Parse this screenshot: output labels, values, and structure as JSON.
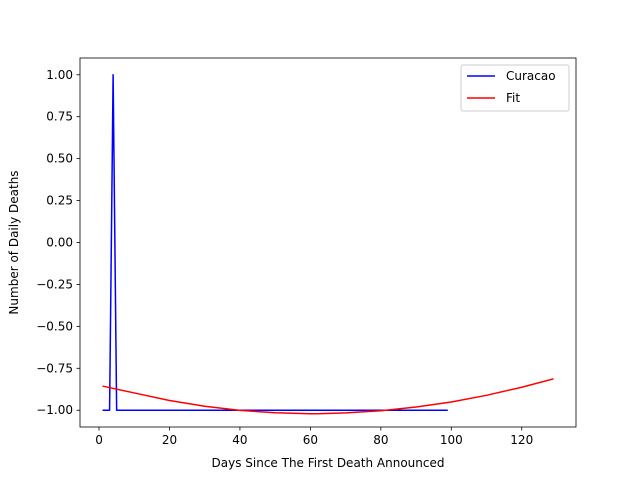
{
  "chart_data": {
    "type": "line",
    "title": "",
    "xlabel": "Days Since The First Death Announced",
    "ylabel": "Number of Daily Deaths",
    "xlim": [
      -5.4,
      135.4
    ],
    "ylim": [
      -1.1,
      1.1
    ],
    "xticks": [
      0,
      20,
      40,
      60,
      80,
      100,
      120
    ],
    "xtick_labels": [
      "0",
      "20",
      "40",
      "60",
      "80",
      "100",
      "120"
    ],
    "yticks": [
      -1.0,
      -0.75,
      -0.5,
      -0.25,
      0.0,
      0.25,
      0.5,
      0.75,
      1.0
    ],
    "ytick_labels": [
      "−1.00",
      "−0.75",
      "−0.50",
      "−0.25",
      "0.00",
      "0.25",
      "0.50",
      "0.75",
      "1.00"
    ],
    "grid": false,
    "legend_position": "upper right",
    "series": [
      {
        "name": "Curacao",
        "color": "#0000ff",
        "x": [
          1,
          2,
          3,
          4,
          5,
          6,
          99
        ],
        "y": [
          -1,
          -1,
          -1,
          1,
          -1,
          -1,
          -1
        ]
      },
      {
        "name": "Fit",
        "color": "#ff0000",
        "x": [
          1,
          10,
          20,
          30,
          40,
          50,
          60,
          62,
          70,
          80,
          90,
          100,
          110,
          120,
          129
        ],
        "y": [
          -0.856,
          -0.897,
          -0.942,
          -0.976,
          -1.001,
          -1.015,
          -1.021,
          -1.021,
          -1.016,
          -1.003,
          -0.981,
          -0.951,
          -0.911,
          -0.863,
          -0.813
        ]
      }
    ]
  }
}
